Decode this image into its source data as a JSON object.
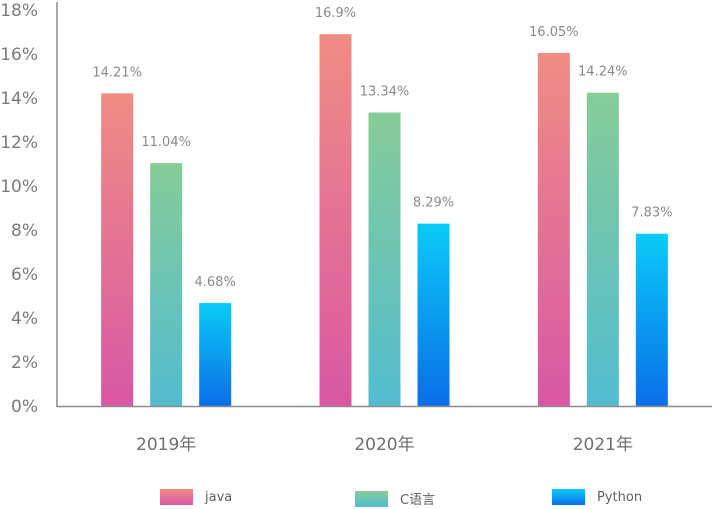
{
  "chart_data": {
    "type": "bar",
    "categories": [
      "2019年",
      "2020年",
      "2021年"
    ],
    "series": [
      {
        "name": "java",
        "values": [
          14.21,
          16.9,
          16.05
        ],
        "labels": [
          "14.21%",
          "16.9%",
          "16.05%"
        ],
        "color_top": "#f08c84",
        "color_bottom": "#d957a4"
      },
      {
        "name": "C语言",
        "values": [
          11.04,
          13.34,
          14.24
        ],
        "labels": [
          "11.04%",
          "13.34%",
          "14.24%"
        ],
        "color_top": "#86cc98",
        "color_bottom": "#52bcd0"
      },
      {
        "name": "Python",
        "values": [
          4.68,
          8.29,
          7.83
        ],
        "labels": [
          "4.68%",
          "8.29%",
          "7.83%"
        ],
        "color_top": "#0acbf8",
        "color_bottom": "#0a6ee8"
      }
    ],
    "ylim": [
      0,
      18
    ],
    "yticks": [
      "0%",
      "2%",
      "4%",
      "6%",
      "8%",
      "10%",
      "12%",
      "14%",
      "16%",
      "18%"
    ],
    "title": "",
    "xlabel": "",
    "ylabel": "",
    "grid": false,
    "legend_position": "bottom"
  }
}
